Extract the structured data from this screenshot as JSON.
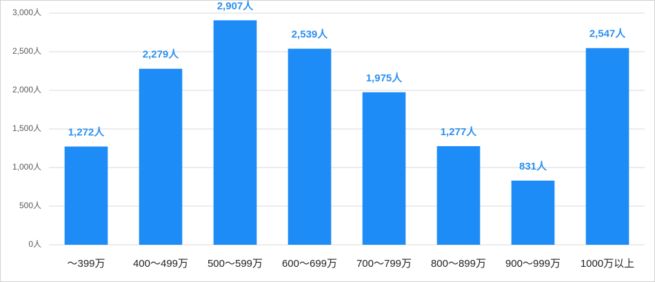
{
  "chart_data": {
    "type": "bar",
    "categories": [
      "～399万",
      "400～499万",
      "500～599万",
      "600～699万",
      "700～799万",
      "800～899万",
      "900～999万",
      "1000万以上"
    ],
    "values": [
      1272,
      2279,
      2907,
      2539,
      1975,
      1277,
      831,
      2547
    ],
    "value_labels": [
      "1,272人",
      "2,279人",
      "2,907人",
      "2,539人",
      "1,975人",
      "1,277人",
      "831人",
      "2,547人"
    ],
    "color": "#1e8cf7",
    "ylim": [
      0,
      3000
    ],
    "yticks": [
      {
        "value": 0,
        "label": "0人"
      },
      {
        "value": 500,
        "label": "500人"
      },
      {
        "value": 1000,
        "label": "1,000人"
      },
      {
        "value": 1500,
        "label": "1,500人"
      },
      {
        "value": 2000,
        "label": "2,000人"
      },
      {
        "value": 2500,
        "label": "2,500人"
      },
      {
        "value": 3000,
        "label": "3,000人"
      }
    ],
    "grid": true
  }
}
